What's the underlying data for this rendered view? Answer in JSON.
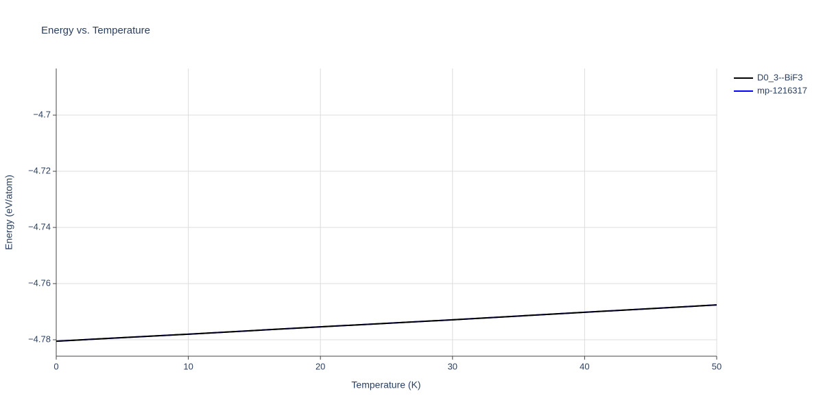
{
  "chart_data": {
    "type": "line",
    "title": "Energy vs. Temperature",
    "x_label": "Temperature (K)",
    "y_label": "Energy (eV/atom)",
    "x": [
      0,
      10,
      20,
      30,
      40,
      50
    ],
    "series": [
      {
        "name": "D0_3--BiF3",
        "color": "#000000",
        "values": [
          -4.7805,
          -4.778,
          -4.7754,
          -4.7729,
          -4.7702,
          -4.7676
        ]
      },
      {
        "name": "mp-1216317",
        "color": "#0000ff",
        "values": [
          -4.7805,
          -4.778,
          -4.7754,
          -4.7729,
          -4.7702,
          -4.7676
        ]
      }
    ],
    "xlim": [
      0,
      50
    ],
    "xticks": [
      0,
      10,
      20,
      30,
      40,
      50
    ],
    "ylim": [
      -4.78585,
      -4.6834
    ],
    "yticks": [
      {
        "value": -4.78,
        "label": "−4.78"
      },
      {
        "value": -4.76,
        "label": "−4.76"
      },
      {
        "value": -4.74,
        "label": "−4.74"
      },
      {
        "value": -4.72,
        "label": "−4.72"
      },
      {
        "value": -4.7,
        "label": "−4.7"
      }
    ],
    "grid": true
  }
}
